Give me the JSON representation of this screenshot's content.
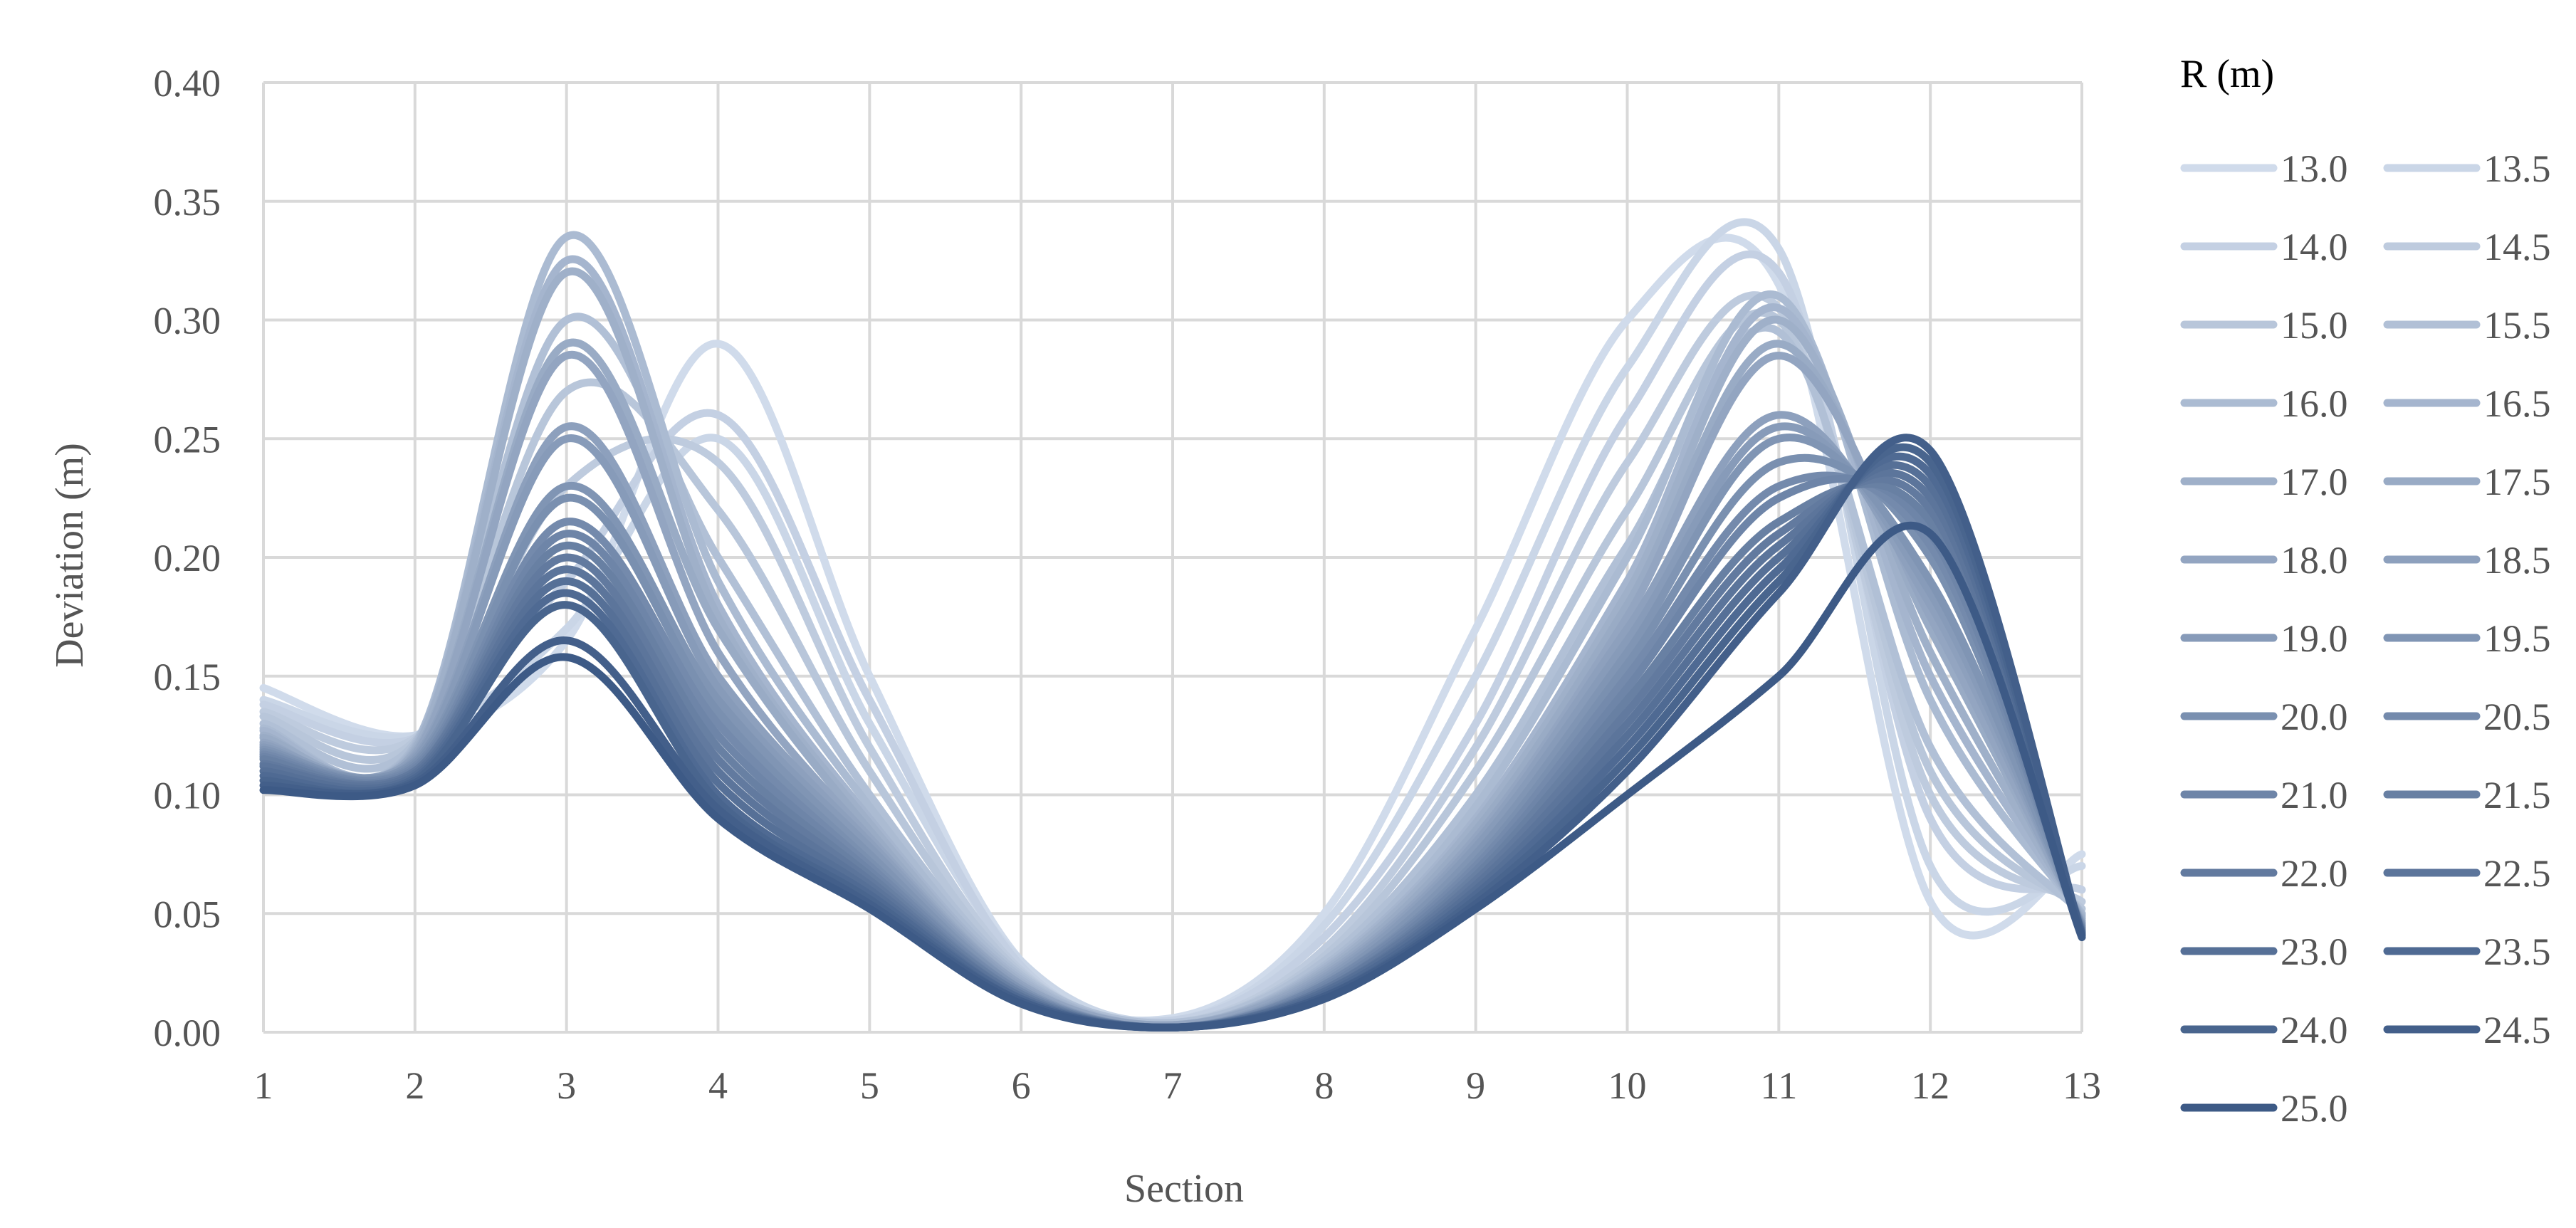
{
  "chart_data": {
    "type": "line",
    "title": "",
    "xlabel": "Section",
    "ylabel": "Deviation (m)",
    "xlim": [
      1,
      13
    ],
    "ylim": [
      0,
      0.4
    ],
    "x": [
      1,
      2,
      3,
      4,
      5,
      6,
      7,
      8,
      9,
      10,
      11,
      12,
      13
    ],
    "x_tick_labels": [
      "1",
      "2",
      "3",
      "4",
      "5",
      "6",
      "7",
      "8",
      "9",
      "10",
      "11",
      "12",
      "13"
    ],
    "y_ticks": [
      0,
      0.05,
      0.1,
      0.15,
      0.2,
      0.25,
      0.3,
      0.35,
      0.4
    ],
    "y_tick_labels": [
      "0.00",
      "0.05",
      "0.10",
      "0.15",
      "0.20",
      "0.25",
      "0.30",
      "0.35",
      "0.40"
    ],
    "grid": true,
    "legend_title": "R (m)",
    "legend_position": "right",
    "color_scale": [
      "#d0dbeb",
      "#3d5a86"
    ],
    "series": [
      {
        "name": "13.0",
        "values": [
          0.145,
          0.125,
          0.165,
          0.29,
          0.15,
          0.03,
          0.006,
          0.05,
          0.17,
          0.3,
          0.315,
          0.055,
          0.075
        ]
      },
      {
        "name": "13.5",
        "values": [
          0.14,
          0.125,
          0.17,
          0.25,
          0.13,
          0.03,
          0.005,
          0.045,
          0.15,
          0.28,
          0.33,
          0.07,
          0.07
        ]
      },
      {
        "name": "14.0",
        "values": [
          0.138,
          0.124,
          0.19,
          0.26,
          0.14,
          0.028,
          0.005,
          0.04,
          0.13,
          0.26,
          0.32,
          0.09,
          0.06
        ]
      },
      {
        "name": "14.5",
        "values": [
          0.135,
          0.124,
          0.23,
          0.24,
          0.12,
          0.026,
          0.004,
          0.035,
          0.12,
          0.24,
          0.305,
          0.1,
          0.055
        ]
      },
      {
        "name": "15.0",
        "values": [
          0.133,
          0.123,
          0.27,
          0.22,
          0.11,
          0.025,
          0.004,
          0.032,
          0.11,
          0.22,
          0.3,
          0.11,
          0.052
        ]
      },
      {
        "name": "15.5",
        "values": [
          0.13,
          0.122,
          0.3,
          0.2,
          0.1,
          0.024,
          0.004,
          0.03,
          0.1,
          0.205,
          0.295,
          0.12,
          0.05
        ]
      },
      {
        "name": "16.0",
        "values": [
          0.128,
          0.121,
          0.335,
          0.19,
          0.095,
          0.023,
          0.003,
          0.028,
          0.095,
          0.2,
          0.31,
          0.14,
          0.05
        ]
      },
      {
        "name": "16.5",
        "values": [
          0.127,
          0.12,
          0.325,
          0.18,
          0.09,
          0.022,
          0.003,
          0.027,
          0.09,
          0.19,
          0.305,
          0.15,
          0.049
        ]
      },
      {
        "name": "17.0",
        "values": [
          0.125,
          0.119,
          0.32,
          0.175,
          0.088,
          0.021,
          0.003,
          0.026,
          0.088,
          0.185,
          0.3,
          0.16,
          0.048
        ]
      },
      {
        "name": "17.5",
        "values": [
          0.124,
          0.118,
          0.29,
          0.17,
          0.085,
          0.02,
          0.003,
          0.025,
          0.085,
          0.18,
          0.29,
          0.17,
          0.047
        ]
      },
      {
        "name": "18.0",
        "values": [
          0.122,
          0.117,
          0.285,
          0.16,
          0.082,
          0.02,
          0.003,
          0.024,
          0.082,
          0.175,
          0.285,
          0.175,
          0.046
        ]
      },
      {
        "name": "18.5",
        "values": [
          0.121,
          0.116,
          0.255,
          0.15,
          0.08,
          0.019,
          0.002,
          0.023,
          0.08,
          0.17,
          0.26,
          0.18,
          0.046
        ]
      },
      {
        "name": "19.0",
        "values": [
          0.12,
          0.115,
          0.25,
          0.145,
          0.078,
          0.018,
          0.002,
          0.022,
          0.078,
          0.165,
          0.255,
          0.185,
          0.045
        ]
      },
      {
        "name": "19.5",
        "values": [
          0.119,
          0.114,
          0.23,
          0.14,
          0.075,
          0.018,
          0.002,
          0.021,
          0.075,
          0.16,
          0.25,
          0.19,
          0.045
        ]
      },
      {
        "name": "20.0",
        "values": [
          0.118,
          0.113,
          0.225,
          0.135,
          0.072,
          0.017,
          0.002,
          0.02,
          0.072,
          0.155,
          0.24,
          0.2,
          0.044
        ]
      },
      {
        "name": "20.5",
        "values": [
          0.117,
          0.112,
          0.215,
          0.13,
          0.07,
          0.017,
          0.002,
          0.02,
          0.07,
          0.15,
          0.23,
          0.205,
          0.044
        ]
      },
      {
        "name": "21.0",
        "values": [
          0.116,
          0.111,
          0.21,
          0.125,
          0.068,
          0.016,
          0.002,
          0.019,
          0.068,
          0.145,
          0.225,
          0.21,
          0.043
        ]
      },
      {
        "name": "21.5",
        "values": [
          0.115,
          0.11,
          0.205,
          0.12,
          0.066,
          0.016,
          0.002,
          0.018,
          0.066,
          0.14,
          0.215,
          0.215,
          0.043
        ]
      },
      {
        "name": "22.0",
        "values": [
          0.113,
          0.11,
          0.2,
          0.115,
          0.064,
          0.015,
          0.002,
          0.018,
          0.064,
          0.135,
          0.21,
          0.22,
          0.042
        ]
      },
      {
        "name": "22.5",
        "values": [
          0.112,
          0.109,
          0.195,
          0.11,
          0.062,
          0.015,
          0.002,
          0.017,
          0.062,
          0.13,
          0.205,
          0.225,
          0.042
        ]
      },
      {
        "name": "23.0",
        "values": [
          0.11,
          0.108,
          0.19,
          0.105,
          0.06,
          0.014,
          0.002,
          0.017,
          0.06,
          0.125,
          0.2,
          0.23,
          0.042
        ]
      },
      {
        "name": "23.5",
        "values": [
          0.108,
          0.107,
          0.185,
          0.1,
          0.058,
          0.014,
          0.002,
          0.016,
          0.058,
          0.12,
          0.195,
          0.235,
          0.041
        ]
      },
      {
        "name": "24.0",
        "values": [
          0.106,
          0.106,
          0.18,
          0.097,
          0.056,
          0.013,
          0.002,
          0.015,
          0.056,
          0.115,
          0.19,
          0.24,
          0.041
        ]
      },
      {
        "name": "24.5",
        "values": [
          0.104,
          0.105,
          0.165,
          0.094,
          0.054,
          0.013,
          0.002,
          0.015,
          0.054,
          0.11,
          0.185,
          0.245,
          0.041
        ]
      },
      {
        "name": "25.0",
        "values": [
          0.102,
          0.104,
          0.158,
          0.09,
          0.052,
          0.012,
          0.002,
          0.014,
          0.052,
          0.1,
          0.15,
          0.21,
          0.04
        ]
      }
    ]
  }
}
